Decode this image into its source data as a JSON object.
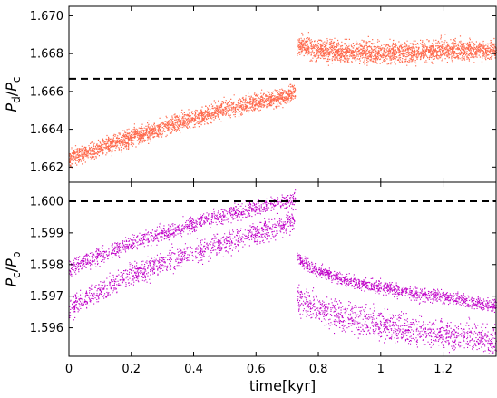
{
  "chart_data": [
    {
      "type": "scatter",
      "panel": "top",
      "ylabel_main": "P",
      "ylabel_num_sub": "d",
      "ylabel_den_sub": "c",
      "xlim": [
        0,
        1.37
      ],
      "ylim": [
        1.6612,
        1.6705
      ],
      "y_ticks": [
        "1.662",
        "1.664",
        "1.666",
        "1.668",
        "1.670"
      ],
      "y_tick_values": [
        1.662,
        1.664,
        1.666,
        1.668,
        1.67
      ],
      "reference_line": 1.66667,
      "color": "#ff6a4d",
      "series": [
        {
          "segment": "before-jump",
          "x": [
            0.0,
            0.1,
            0.2,
            0.3,
            0.4,
            0.5,
            0.6,
            0.7,
            0.725
          ],
          "y_center": [
            1.6625,
            1.663,
            1.6636,
            1.6641,
            1.6646,
            1.6651,
            1.6655,
            1.6658,
            1.666
          ],
          "y_spread": 0.0009
        },
        {
          "segment": "after-jump",
          "x": [
            0.73,
            0.8,
            0.9,
            1.0,
            1.1,
            1.2,
            1.3,
            1.37
          ],
          "y_center": [
            1.6685,
            1.6682,
            1.6681,
            1.6681,
            1.6681,
            1.6682,
            1.6682,
            1.6682
          ],
          "y_spread": 0.0011
        }
      ]
    },
    {
      "type": "scatter",
      "panel": "bottom",
      "ylabel_main": "P",
      "ylabel_num_sub": "c",
      "ylabel_den_sub": "b",
      "xlabel": "time[kyr]",
      "xlim": [
        0,
        1.37
      ],
      "ylim": [
        1.5951,
        1.6006
      ],
      "x_ticks": [
        "0",
        "0.2",
        "0.4",
        "0.6",
        "0.8",
        "1",
        "1.2"
      ],
      "x_tick_values": [
        0,
        0.2,
        0.4,
        0.6,
        0.8,
        1.0,
        1.2
      ],
      "y_ticks": [
        "1.596",
        "1.597",
        "1.598",
        "1.599",
        "1.600"
      ],
      "y_tick_values": [
        1.596,
        1.597,
        1.598,
        1.599,
        1.6
      ],
      "reference_line": 1.6,
      "color": "#c000c8",
      "series": [
        {
          "segment": "before-jump-upper-band",
          "x": [
            0.0,
            0.1,
            0.2,
            0.3,
            0.4,
            0.5,
            0.6,
            0.7,
            0.725
          ],
          "y_center": [
            1.5979,
            1.5983,
            1.5987,
            1.599,
            1.5993,
            1.5996,
            1.5998,
            1.6,
            1.6001
          ],
          "y_spread": 0.0005
        },
        {
          "segment": "before-jump-lower-band",
          "x": [
            0.0,
            0.1,
            0.2,
            0.3,
            0.4,
            0.5,
            0.6,
            0.7,
            0.725
          ],
          "y_center": [
            1.5966,
            1.5972,
            1.5977,
            1.5981,
            1.5984,
            1.5987,
            1.599,
            1.5993,
            1.5995
          ],
          "y_spread": 0.0007
        },
        {
          "segment": "after-jump-upper-band",
          "x": [
            0.73,
            0.8,
            0.9,
            1.0,
            1.1,
            1.2,
            1.3,
            1.37
          ],
          "y_center": [
            1.5982,
            1.5978,
            1.5975,
            1.5973,
            1.5971,
            1.597,
            1.5968,
            1.5967
          ],
          "y_spread": 0.0004
        },
        {
          "segment": "after-jump-lower-band",
          "x": [
            0.73,
            0.8,
            0.9,
            1.0,
            1.1,
            1.2,
            1.3,
            1.37
          ],
          "y_center": [
            1.597,
            1.5966,
            1.5963,
            1.5961,
            1.5959,
            1.5958,
            1.5957,
            1.5956
          ],
          "y_spread": 0.0009
        }
      ]
    }
  ]
}
